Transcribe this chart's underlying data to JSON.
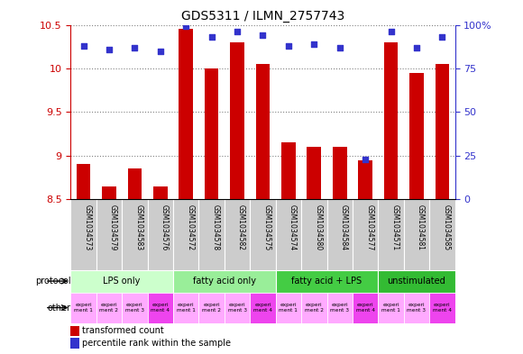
{
  "title": "GDS5311 / ILMN_2757743",
  "samples": [
    "GSM1034573",
    "GSM1034579",
    "GSM1034583",
    "GSM1034576",
    "GSM1034572",
    "GSM1034578",
    "GSM1034582",
    "GSM1034575",
    "GSM1034574",
    "GSM1034580",
    "GSM1034584",
    "GSM1034577",
    "GSM1034571",
    "GSM1034581",
    "GSM1034585"
  ],
  "transformed_count": [
    8.9,
    8.65,
    8.85,
    8.65,
    10.45,
    10.0,
    10.3,
    10.05,
    9.15,
    9.1,
    9.1,
    8.95,
    10.3,
    9.95,
    10.05
  ],
  "percentile_rank": [
    88,
    86,
    87,
    85,
    99,
    93,
    96,
    94,
    88,
    89,
    87,
    23,
    96,
    87,
    93
  ],
  "ylim_left": [
    8.5,
    10.5
  ],
  "ylim_right": [
    0,
    100
  ],
  "yticks_left": [
    8.5,
    9.0,
    9.5,
    10.0,
    10.5
  ],
  "yticks_right": [
    0,
    25,
    50,
    75,
    100
  ],
  "ytick_labels_left": [
    "8.5",
    "9",
    "9.5",
    "10",
    "10.5"
  ],
  "ytick_labels_right": [
    "0",
    "25",
    "50",
    "75",
    "100%"
  ],
  "bar_color": "#cc0000",
  "dot_color": "#3333cc",
  "protocol_groups": [
    {
      "label": "LPS only",
      "start": 0,
      "end": 4,
      "color": "#ccffcc"
    },
    {
      "label": "fatty acid only",
      "start": 4,
      "end": 8,
      "color": "#99ee99"
    },
    {
      "label": "fatty acid + LPS",
      "start": 8,
      "end": 12,
      "color": "#44cc44"
    },
    {
      "label": "unstimulated",
      "start": 12,
      "end": 15,
      "color": "#33bb33"
    }
  ],
  "other_colors": [
    "#ffaaff",
    "#ffaaff",
    "#ffaaff",
    "#ee44ee",
    "#ffaaff",
    "#ffaaff",
    "#ffaaff",
    "#ee44ee",
    "#ffaaff",
    "#ffaaff",
    "#ffaaff",
    "#ee44ee",
    "#ffaaff",
    "#ffaaff",
    "#ee44ee"
  ],
  "other_labels": [
    "experi\nment 1",
    "experi\nment 2",
    "experi\nment 3",
    "experi\nment 4",
    "experi\nment 1",
    "experi\nment 2",
    "experi\nment 3",
    "experi\nment 4",
    "experi\nment 1",
    "experi\nment 2",
    "experi\nment 3",
    "experi\nment 4",
    "experi\nment 1",
    "experi\nment 3",
    "experi\nment 4"
  ],
  "xticklabel_bg": "#cccccc",
  "legend_red_label": "transformed count",
  "legend_blue_label": "percentile rank within the sample"
}
